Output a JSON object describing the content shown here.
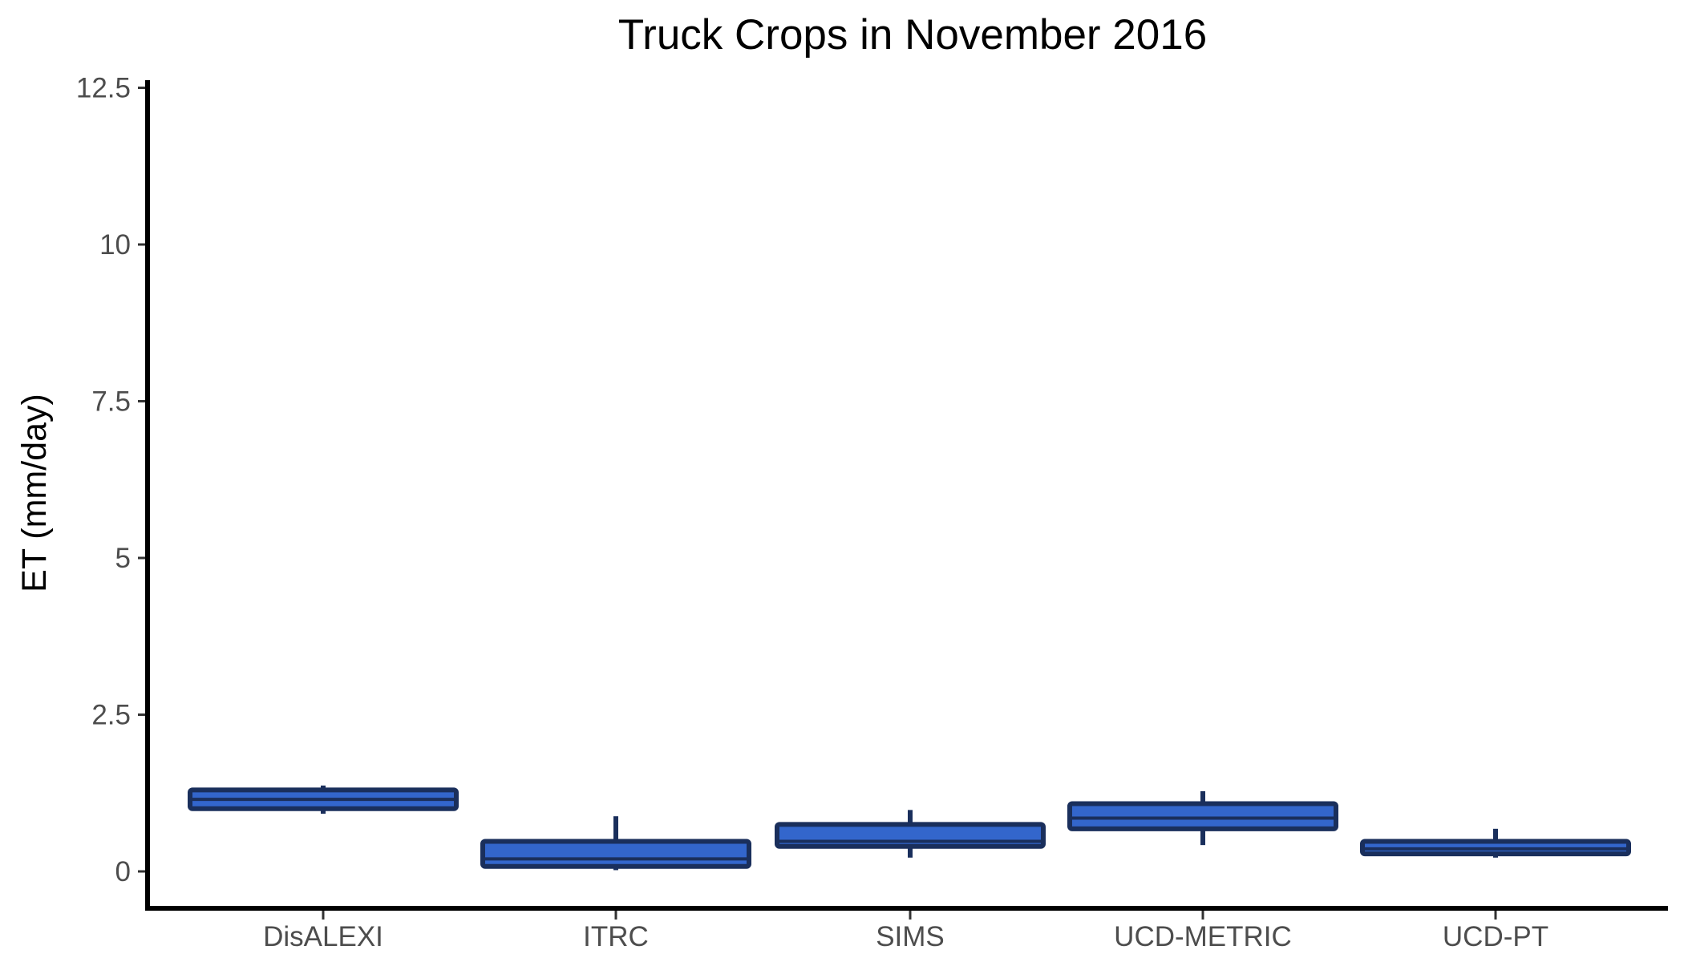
{
  "chart_data": {
    "type": "box",
    "title": "Truck Crops in November 2016",
    "xlabel": "",
    "ylabel": "ET (mm/day)",
    "ylim": [
      -0.6,
      12.6
    ],
    "yticks": [
      0,
      2.5,
      5,
      7.5,
      10,
      12.5
    ],
    "ytick_labels": [
      "0",
      "2.5",
      "5",
      "7.5",
      "10",
      "12.5"
    ],
    "grid": false,
    "categories": [
      "DisALEXI",
      "ITRC",
      "SIMS",
      "UCD-METRIC",
      "UCD-PT"
    ],
    "boxes": [
      {
        "category": "DisALEXI",
        "min": 0.92,
        "q1": 1.0,
        "median": 1.15,
        "q3": 1.3,
        "max": 1.37
      },
      {
        "category": "ITRC",
        "min": 0.02,
        "q1": 0.08,
        "median": 0.2,
        "q3": 0.48,
        "max": 0.88
      },
      {
        "category": "SIMS",
        "min": 0.22,
        "q1": 0.4,
        "median": 0.48,
        "q3": 0.75,
        "max": 0.98
      },
      {
        "category": "UCD-METRIC",
        "min": 0.42,
        "q1": 0.68,
        "median": 0.85,
        "q3": 1.08,
        "max": 1.28
      },
      {
        "category": "UCD-PT",
        "min": 0.22,
        "q1": 0.28,
        "median": 0.36,
        "q3": 0.48,
        "max": 0.68
      }
    ],
    "colors": {
      "box_fill": "#3366cc",
      "box_stroke": "#1a2f5c",
      "axis": "#000000"
    }
  }
}
